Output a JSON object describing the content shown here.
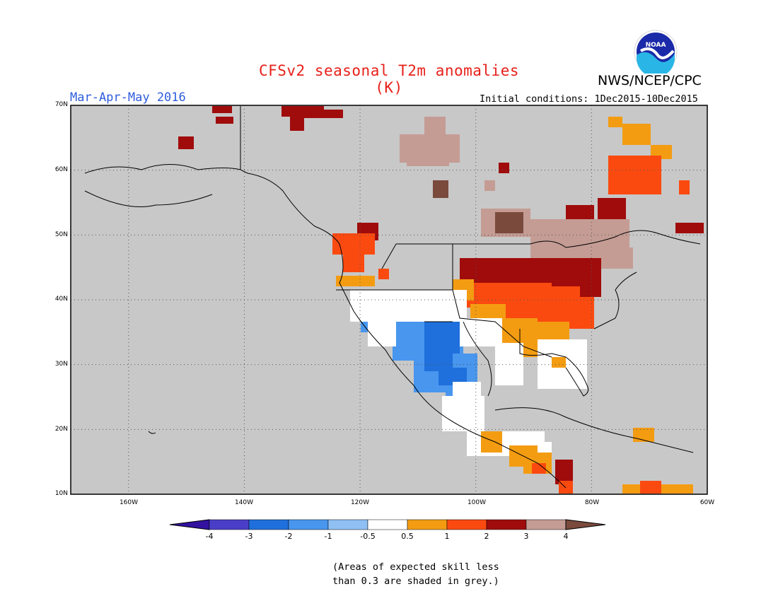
{
  "title": "CFSv2 seasonal T2m anomalies (K)",
  "organization": "NWS/NCEP/CPC",
  "logo_text": "NOAA",
  "season": "Mar-Apr-May 2016",
  "initial_conditions": "Initial conditions: 1Dec2015-10Dec2015",
  "lat_labels": [
    "70N",
    "60N",
    "50N",
    "40N",
    "30N",
    "20N",
    "10N"
  ],
  "lon_labels": [
    "160W",
    "140W",
    "120W",
    "100W",
    "80W",
    "60W"
  ],
  "colorbar": {
    "labels": [
      "-4",
      "-3",
      "-2",
      "-1",
      "-0.5",
      "0.5",
      "1",
      "2",
      "3",
      "4"
    ],
    "colors": [
      "#3312a0",
      "#4a3ec8",
      "#1f6fdc",
      "#4896ee",
      "#8fc0f4",
      "#ffffff",
      "#f39c12",
      "#fb4a10",
      "#a00c0c",
      "#c49c94",
      "#7a4a3c"
    ]
  },
  "grey_color": "#c8c8c8",
  "note_line1": "(Areas of expected skill less",
  "note_line2": "than 0.3 are shaded in grey.)",
  "map": {
    "lon_range": [
      -170,
      -60
    ],
    "lat_range": [
      10,
      70
    ],
    "grid": true
  }
}
